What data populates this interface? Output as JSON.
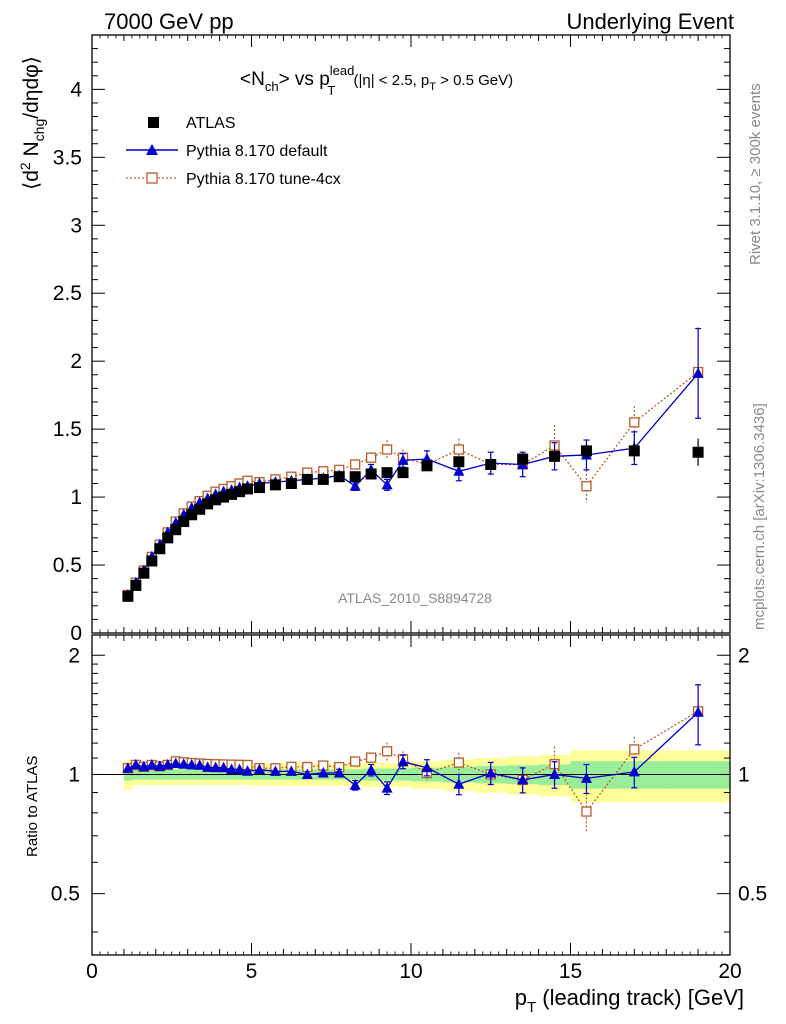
{
  "header": {
    "left": "7000 GeV pp",
    "right": "Underlying Event"
  },
  "side_text": {
    "rivet": "Rivet 3.1.10, ≥ 300k events",
    "mcplots": "mcplots.cern.ch [arXiv:1306.3436]"
  },
  "watermark": "ATLAS_2010_S8894728",
  "title": {
    "main": "<N",
    "ch": "ch",
    "vs": "> vs p",
    "lead": "lead",
    "T": "T",
    "cut1": " (|η| < 2.5, p",
    "cut_T": "T",
    "cut2": " > 0.5 GeV)"
  },
  "ylabel": {
    "part1": "⟨d",
    "sup2": "2",
    "part2": " N",
    "sub": "chg",
    "part3": "/dηdφ⟩"
  },
  "ratio_ylabel": "Ratio to ATLAS",
  "xlabel": {
    "p": "p",
    "T": "T",
    "rest": " (leading track) [GeV]"
  },
  "legend": [
    {
      "label": "ATLAS",
      "color": "#000000",
      "marker": "square-filled"
    },
    {
      "label": "Pythia 8.170 default",
      "color": "#0000cc",
      "marker": "triangle-filled"
    },
    {
      "label": "Pythia 8.170 tune-4cx",
      "color": "#b85c2c",
      "marker": "square-open"
    }
  ],
  "chart_data": {
    "type": "scatter",
    "xlim": [
      0,
      20
    ],
    "ylim": [
      0,
      4.4
    ],
    "ratio_ylim": [
      0.35,
      2.25
    ],
    "xticks": [
      0,
      5,
      10,
      15,
      20
    ],
    "yticks": [
      0,
      0.5,
      1,
      1.5,
      2,
      2.5,
      3,
      3.5,
      4
    ],
    "ytick_labels": [
      "0",
      "0.5",
      "1",
      "1.5",
      "2",
      "2.5",
      "3",
      "3.5",
      "4"
    ],
    "ratio_yticks": [
      0.5,
      1,
      2
    ],
    "x": [
      1.125,
      1.375,
      1.625,
      1.875,
      2.125,
      2.375,
      2.625,
      2.875,
      3.125,
      3.375,
      3.625,
      3.875,
      4.125,
      4.375,
      4.625,
      4.875,
      5.25,
      5.75,
      6.25,
      6.75,
      7.25,
      7.75,
      8.25,
      8.75,
      9.25,
      9.75,
      10.5,
      11.5,
      12.5,
      13.5,
      14.5,
      15.5,
      17.0,
      19.0
    ],
    "series": [
      {
        "name": "ATLAS",
        "values": [
          0.27,
          0.35,
          0.44,
          0.53,
          0.62,
          0.7,
          0.76,
          0.82,
          0.87,
          0.91,
          0.95,
          0.98,
          1.0,
          1.02,
          1.04,
          1.06,
          1.07,
          1.09,
          1.1,
          1.13,
          1.13,
          1.15,
          1.15,
          1.17,
          1.18,
          1.18,
          1.23,
          1.26,
          1.24,
          1.28,
          1.3,
          1.34,
          1.34,
          1.33
        ],
        "err": [
          0.004,
          0.004,
          0.005,
          0.005,
          0.006,
          0.006,
          0.007,
          0.007,
          0.008,
          0.008,
          0.008,
          0.009,
          0.009,
          0.01,
          0.01,
          0.01,
          0.01,
          0.012,
          0.013,
          0.014,
          0.015,
          0.016,
          0.017,
          0.019,
          0.02,
          0.02,
          0.025,
          0.03,
          0.035,
          0.04,
          0.05,
          0.06,
          0.07,
          0.1
        ]
      },
      {
        "name": "Pythia 8.170 default",
        "values": [
          0.28,
          0.37,
          0.46,
          0.56,
          0.65,
          0.74,
          0.81,
          0.87,
          0.92,
          0.96,
          0.99,
          1.02,
          1.04,
          1.05,
          1.07,
          1.08,
          1.1,
          1.11,
          1.12,
          1.13,
          1.14,
          1.16,
          1.08,
          1.2,
          1.09,
          1.27,
          1.28,
          1.19,
          1.25,
          1.24,
          1.3,
          1.31,
          1.36,
          1.91
        ],
        "err": [
          0.005,
          0.005,
          0.005,
          0.006,
          0.006,
          0.007,
          0.007,
          0.008,
          0.008,
          0.009,
          0.009,
          0.01,
          0.01,
          0.011,
          0.012,
          0.012,
          0.013,
          0.015,
          0.016,
          0.018,
          0.02,
          0.025,
          0.03,
          0.04,
          0.04,
          0.05,
          0.06,
          0.07,
          0.08,
          0.09,
          0.1,
          0.11,
          0.12,
          0.33
        ]
      },
      {
        "name": "Pythia 8.170 tune-4cx",
        "values": [
          0.28,
          0.37,
          0.46,
          0.56,
          0.65,
          0.74,
          0.82,
          0.88,
          0.93,
          0.97,
          1.01,
          1.04,
          1.06,
          1.08,
          1.1,
          1.12,
          1.11,
          1.13,
          1.15,
          1.18,
          1.19,
          1.2,
          1.24,
          1.29,
          1.35,
          1.29,
          1.24,
          1.35,
          1.24,
          1.24,
          1.38,
          1.08,
          1.55,
          1.92
        ],
        "err": [
          0.005,
          0.005,
          0.005,
          0.006,
          0.006,
          0.007,
          0.007,
          0.008,
          0.008,
          0.009,
          0.009,
          0.01,
          0.01,
          0.011,
          0.012,
          0.012,
          0.013,
          0.015,
          0.016,
          0.018,
          0.02,
          0.025,
          0.03,
          0.04,
          0.07,
          0.06,
          0.06,
          0.08,
          0.08,
          0.09,
          0.15,
          0.12,
          0.12,
          0.33
        ]
      }
    ],
    "ratio_bands": {
      "x_edges": [
        1.0,
        1.25,
        1.5,
        1.75,
        2.0,
        2.25,
        2.5,
        2.75,
        3.0,
        3.25,
        3.5,
        3.75,
        4.0,
        4.25,
        4.5,
        4.75,
        5.0,
        5.5,
        6.0,
        6.5,
        7.0,
        7.5,
        8.0,
        8.5,
        9.0,
        9.5,
        10.0,
        11.0,
        12.0,
        13.0,
        14.0,
        15.0,
        16.0,
        18.0,
        20.0
      ],
      "inner": [
        0.035,
        0.03,
        0.03,
        0.03,
        0.03,
        0.03,
        0.03,
        0.03,
        0.03,
        0.03,
        0.03,
        0.03,
        0.03,
        0.03,
        0.03,
        0.03,
        0.03,
        0.03,
        0.03,
        0.03,
        0.03,
        0.03,
        0.03,
        0.035,
        0.035,
        0.035,
        0.04,
        0.045,
        0.05,
        0.055,
        0.06,
        0.08,
        0.08,
        0.08
      ],
      "outer": [
        0.085,
        0.06,
        0.06,
        0.06,
        0.06,
        0.06,
        0.06,
        0.06,
        0.06,
        0.06,
        0.06,
        0.06,
        0.06,
        0.06,
        0.06,
        0.06,
        0.065,
        0.065,
        0.065,
        0.065,
        0.065,
        0.065,
        0.065,
        0.07,
        0.07,
        0.07,
        0.08,
        0.09,
        0.1,
        0.11,
        0.12,
        0.15,
        0.15,
        0.15
      ]
    }
  }
}
